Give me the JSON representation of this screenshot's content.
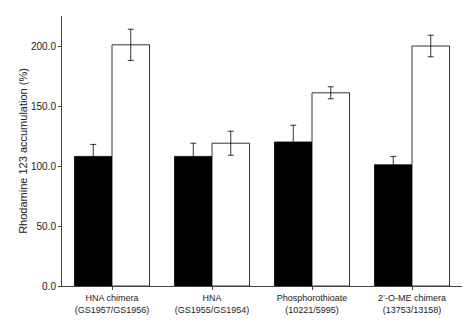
{
  "chart_data": {
    "type": "bar",
    "categories": [
      "HNA chimera\n(GS1957/GS1956)",
      "HNA\n(GS1955/GS1954)",
      "Phosphorothioate\n(10221/5995)",
      "2’-O-ME chimera\n(13753/13158)"
    ],
    "series": [
      {
        "color": "#000000",
        "values": [
          108,
          108,
          120,
          101
        ],
        "errors": [
          10,
          11,
          14,
          7
        ]
      },
      {
        "color": "#ffffff",
        "values": [
          201,
          119,
          161,
          200
        ],
        "errors": [
          13,
          10,
          5,
          9
        ]
      }
    ],
    "ylabel": "Rhodamine 123 accumulation (%)",
    "ylim": [
      0,
      225
    ],
    "yticks": [
      {
        "value": 0,
        "label": "0.0"
      },
      {
        "value": 50,
        "label": "50.0"
      },
      {
        "value": 100,
        "label": "100.0"
      },
      {
        "value": 150,
        "label": "150.0"
      },
      {
        "value": 200,
        "label": "200.0"
      }
    ],
    "grid": false
  }
}
